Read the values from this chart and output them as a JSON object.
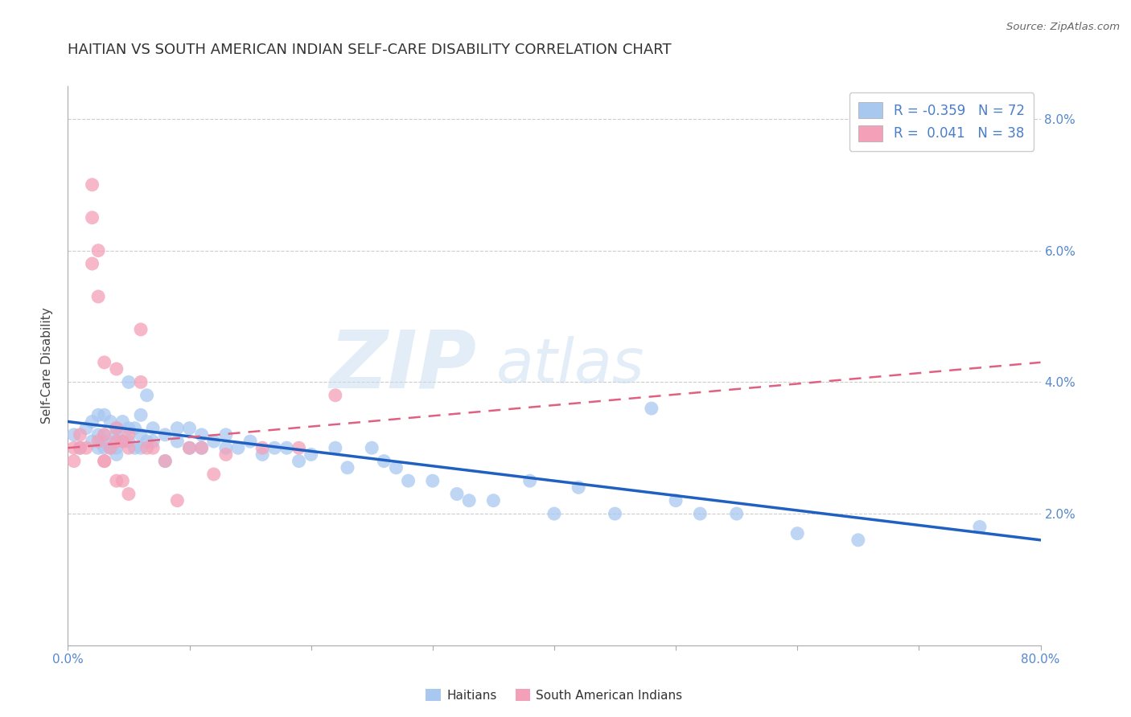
{
  "title": "HAITIAN VS SOUTH AMERICAN INDIAN SELF-CARE DISABILITY CORRELATION CHART",
  "source": "Source: ZipAtlas.com",
  "ylabel": "Self-Care Disability",
  "xlim": [
    0.0,
    0.8
  ],
  "ylim": [
    0.0,
    0.085
  ],
  "xticks": [
    0.0,
    0.1,
    0.2,
    0.3,
    0.4,
    0.5,
    0.6,
    0.7,
    0.8
  ],
  "xticklabels_sparse": [
    "0.0%",
    "",
    "",
    "",
    "",
    "",
    "",
    "",
    "80.0%"
  ],
  "yticks": [
    0.0,
    0.02,
    0.04,
    0.06,
    0.08
  ],
  "yticklabels": [
    "",
    "2.0%",
    "4.0%",
    "6.0%",
    "8.0%"
  ],
  "haitian_R": -0.359,
  "haitian_N": 72,
  "sa_indian_R": 0.041,
  "sa_indian_N": 38,
  "haitian_color": "#A8C8F0",
  "sa_indian_color": "#F4A0B8",
  "haitian_line_color": "#2060C0",
  "sa_indian_line_color": "#E06080",
  "watermark_zip": "ZIP",
  "watermark_atlas": "atlas",
  "background_color": "#FFFFFF",
  "grid_color": "#CCCCCC",
  "haitian_x": [
    0.005,
    0.01,
    0.015,
    0.02,
    0.02,
    0.025,
    0.025,
    0.025,
    0.03,
    0.03,
    0.03,
    0.03,
    0.035,
    0.035,
    0.04,
    0.04,
    0.04,
    0.04,
    0.04,
    0.045,
    0.045,
    0.05,
    0.05,
    0.05,
    0.055,
    0.055,
    0.06,
    0.06,
    0.06,
    0.065,
    0.065,
    0.07,
    0.07,
    0.08,
    0.08,
    0.09,
    0.09,
    0.1,
    0.1,
    0.11,
    0.11,
    0.12,
    0.13,
    0.13,
    0.14,
    0.15,
    0.16,
    0.17,
    0.18,
    0.19,
    0.2,
    0.22,
    0.23,
    0.25,
    0.26,
    0.27,
    0.28,
    0.3,
    0.32,
    0.33,
    0.35,
    0.38,
    0.4,
    0.42,
    0.45,
    0.48,
    0.5,
    0.52,
    0.55,
    0.6,
    0.65,
    0.75
  ],
  "haitian_y": [
    0.032,
    0.03,
    0.033,
    0.031,
    0.034,
    0.03,
    0.032,
    0.035,
    0.031,
    0.03,
    0.032,
    0.035,
    0.03,
    0.034,
    0.032,
    0.03,
    0.033,
    0.031,
    0.029,
    0.031,
    0.034,
    0.033,
    0.031,
    0.04,
    0.03,
    0.033,
    0.032,
    0.03,
    0.035,
    0.031,
    0.038,
    0.033,
    0.031,
    0.032,
    0.028,
    0.031,
    0.033,
    0.03,
    0.033,
    0.032,
    0.03,
    0.031,
    0.03,
    0.032,
    0.03,
    0.031,
    0.029,
    0.03,
    0.03,
    0.028,
    0.029,
    0.03,
    0.027,
    0.03,
    0.028,
    0.027,
    0.025,
    0.025,
    0.023,
    0.022,
    0.022,
    0.025,
    0.02,
    0.024,
    0.02,
    0.036,
    0.022,
    0.02,
    0.02,
    0.017,
    0.016,
    0.018
  ],
  "sa_indian_x": [
    0.005,
    0.005,
    0.01,
    0.01,
    0.015,
    0.02,
    0.02,
    0.02,
    0.025,
    0.025,
    0.025,
    0.03,
    0.03,
    0.03,
    0.03,
    0.035,
    0.04,
    0.04,
    0.04,
    0.04,
    0.045,
    0.045,
    0.05,
    0.05,
    0.05,
    0.06,
    0.06,
    0.065,
    0.07,
    0.08,
    0.09,
    0.1,
    0.11,
    0.12,
    0.13,
    0.16,
    0.19,
    0.22
  ],
  "sa_indian_y": [
    0.03,
    0.028,
    0.032,
    0.03,
    0.03,
    0.07,
    0.065,
    0.058,
    0.06,
    0.053,
    0.031,
    0.028,
    0.043,
    0.032,
    0.028,
    0.03,
    0.042,
    0.033,
    0.031,
    0.025,
    0.031,
    0.025,
    0.032,
    0.03,
    0.023,
    0.048,
    0.04,
    0.03,
    0.03,
    0.028,
    0.022,
    0.03,
    0.03,
    0.026,
    0.029,
    0.03,
    0.03,
    0.038
  ],
  "haitian_line_x": [
    0.0,
    0.8
  ],
  "haitian_line_y": [
    0.034,
    0.016
  ],
  "sa_line_x": [
    0.0,
    0.8
  ],
  "sa_line_y": [
    0.03,
    0.043
  ]
}
